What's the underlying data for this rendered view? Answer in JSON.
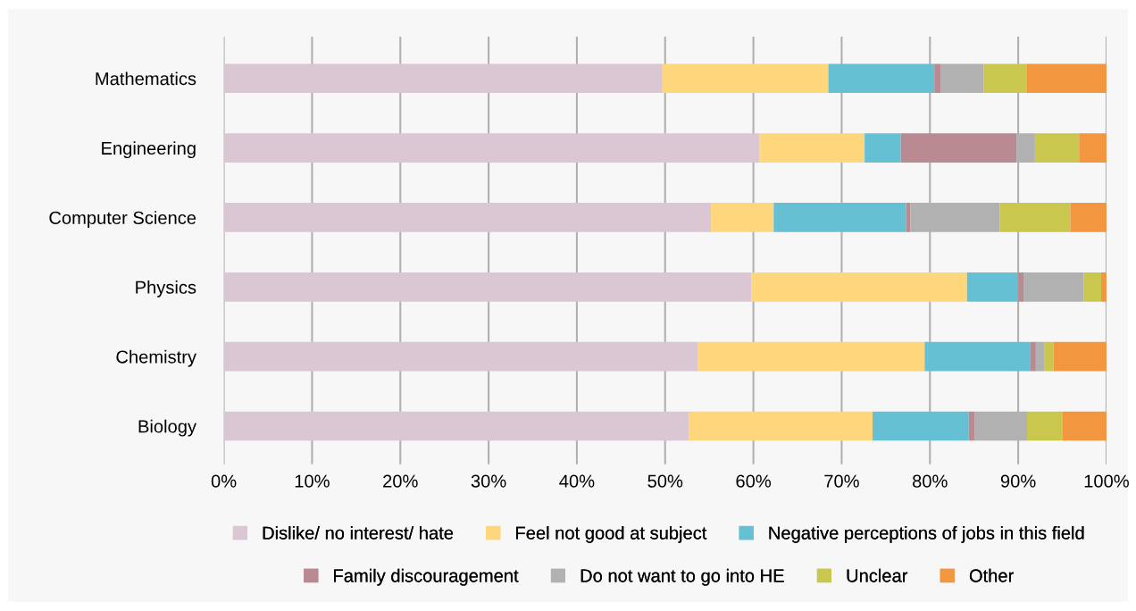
{
  "chart_data": {
    "type": "bar",
    "orientation": "horizontal",
    "stacked": true,
    "categories": [
      "Mathematics",
      "Engineering",
      "Computer Science",
      "Physics",
      "Chemistry",
      "Biology"
    ],
    "series": [
      {
        "name": "Dislike/ no interest/ hate",
        "color": "#dbc6d3",
        "values": [
          49.7,
          60.7,
          55.2,
          59.8,
          53.7,
          52.7
        ]
      },
      {
        "name": "Feel not good at subject",
        "color": "#fed67b",
        "values": [
          18.8,
          11.9,
          7.1,
          24.4,
          25.7,
          20.8
        ]
      },
      {
        "name": "Negative perceptions of jobs in this field",
        "color": "#66c0d4",
        "values": [
          12.0,
          4.1,
          15.0,
          5.8,
          12.0,
          10.9
        ]
      },
      {
        "name": "Family discouragement",
        "color": "#ba8a92",
        "values": [
          0.7,
          13.1,
          0.5,
          0.6,
          0.6,
          0.7
        ]
      },
      {
        "name": "Do not want to go into HE",
        "color": "#b1b1b1",
        "values": [
          4.9,
          2.1,
          10.1,
          6.8,
          1.0,
          5.9
        ]
      },
      {
        "name": "Unclear",
        "color": "#c9c74d",
        "values": [
          4.9,
          5.0,
          8.0,
          2.0,
          1.0,
          4.0
        ]
      },
      {
        "name": "Other",
        "color": "#f39640",
        "values": [
          9.0,
          3.1,
          4.1,
          0.6,
          6.0,
          5.0
        ]
      }
    ],
    "xlim": [
      0,
      100
    ],
    "xticks": [
      {
        "value": 0,
        "label": "0%"
      },
      {
        "value": 10,
        "label": "10%"
      },
      {
        "value": 20,
        "label": "20%"
      },
      {
        "value": 30,
        "label": "30%"
      },
      {
        "value": 40,
        "label": "40%"
      },
      {
        "value": 50,
        "label": "50%"
      },
      {
        "value": 60,
        "label": "60%"
      },
      {
        "value": 70,
        "label": "70%"
      },
      {
        "value": 80,
        "label": "80%"
      },
      {
        "value": 90,
        "label": "90%"
      },
      {
        "value": 100,
        "label": "100%"
      }
    ],
    "grid": "x",
    "legend": "bottom"
  }
}
